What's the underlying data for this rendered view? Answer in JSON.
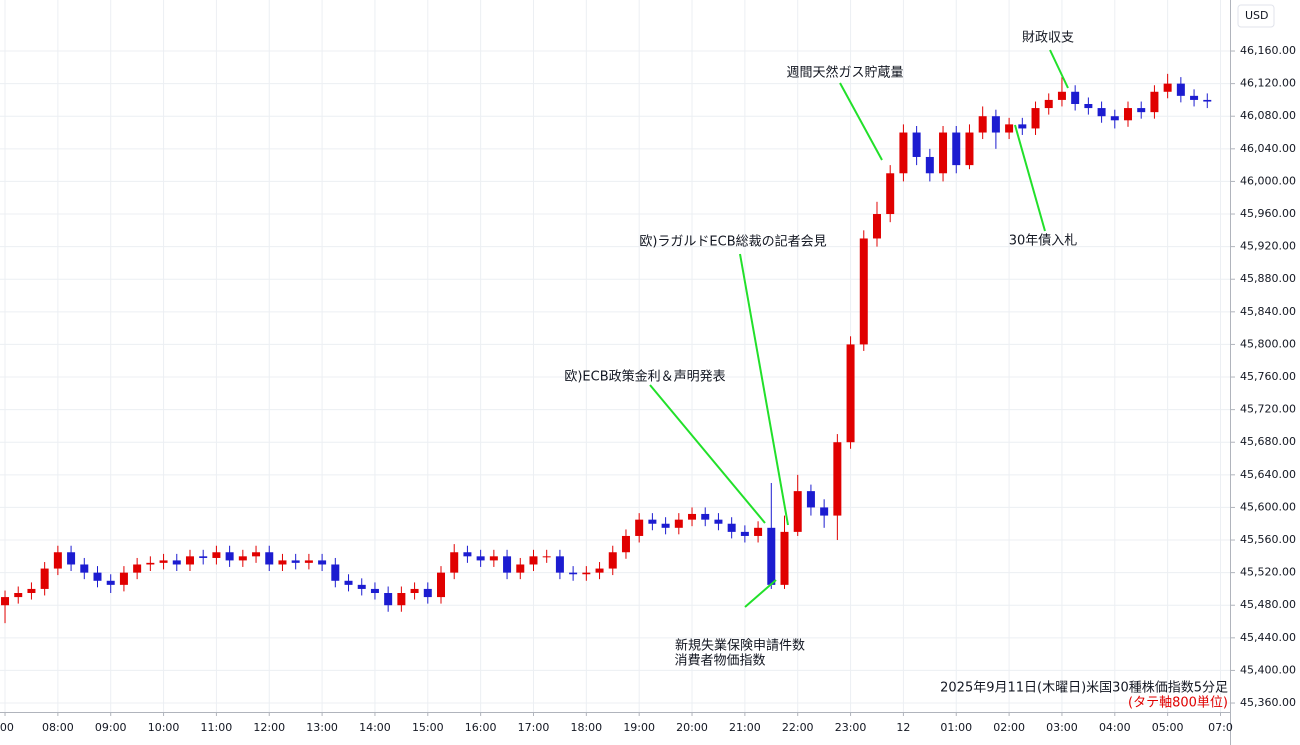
{
  "chart_data": {
    "type": "candlestick",
    "currency": "USD",
    "caption": "2025年9月11日(木曜日)米国30種株価指数5分足",
    "note": "(タテ軸800単位)",
    "annotations": [
      "財政収支",
      "週間天然ガス貯蔵量",
      "30年債入札",
      "欧)ラガルドECB総裁の記者会見",
      "欧)ECB政策金利＆声明発表",
      "新規失業保険申請件数",
      "消費者物価指数"
    ],
    "up_color": "#e00000",
    "down_color": "#1c1cd0",
    "grid": true,
    "xlim": [
      6.905,
      30.18
    ],
    "ylim": [
      45349,
      46222.6
    ],
    "xticks": [
      {
        "value": 7,
        "label": ":00"
      },
      {
        "value": 8,
        "label": "08:00"
      },
      {
        "value": 9,
        "label": "09:00"
      },
      {
        "value": 10,
        "label": "10:00"
      },
      {
        "value": 11,
        "label": "11:00"
      },
      {
        "value": 12,
        "label": "12:00"
      },
      {
        "value": 13,
        "label": "13:00"
      },
      {
        "value": 14,
        "label": "14:00"
      },
      {
        "value": 15,
        "label": "15:00"
      },
      {
        "value": 16,
        "label": "16:00"
      },
      {
        "value": 17,
        "label": "17:00"
      },
      {
        "value": 18,
        "label": "18:00"
      },
      {
        "value": 19,
        "label": "19:00"
      },
      {
        "value": 20,
        "label": "20:00"
      },
      {
        "value": 21,
        "label": "21:00"
      },
      {
        "value": 22,
        "label": "22:00"
      },
      {
        "value": 23,
        "label": "23:00"
      },
      {
        "value": 24,
        "label": "12"
      },
      {
        "value": 25,
        "label": "01:00"
      },
      {
        "value": 26,
        "label": "02:00"
      },
      {
        "value": 27,
        "label": "03:00"
      },
      {
        "value": 28,
        "label": "04:00"
      },
      {
        "value": 29,
        "label": "05:00"
      },
      {
        "value": 30,
        "label": "07:0"
      }
    ],
    "yticks": [
      {
        "value": 45360,
        "label": "45,360.00"
      },
      {
        "value": 45400,
        "label": "45,400.00"
      },
      {
        "value": 45440,
        "label": "45,440.00"
      },
      {
        "value": 45480,
        "label": "45,480.00"
      },
      {
        "value": 45520,
        "label": "45,520.00"
      },
      {
        "value": 45560,
        "label": "45,560.00"
      },
      {
        "value": 45600,
        "label": "45,600.00"
      },
      {
        "value": 45640,
        "label": "45,640.00"
      },
      {
        "value": 45680,
        "label": "45,680.00"
      },
      {
        "value": 45720,
        "label": "45,720.00"
      },
      {
        "value": 45760,
        "label": "45,760.00"
      },
      {
        "value": 45800,
        "label": "45,800.00"
      },
      {
        "value": 45840,
        "label": "45,840.00"
      },
      {
        "value": 45880,
        "label": "45,880.00"
      },
      {
        "value": 45920,
        "label": "45,920.00"
      },
      {
        "value": 45960,
        "label": "45,960.00"
      },
      {
        "value": 46000,
        "label": "46,000.00"
      },
      {
        "value": 46040,
        "label": "46,040.00"
      },
      {
        "value": 46080,
        "label": "46,080.00"
      },
      {
        "value": 46120,
        "label": "46,120.00"
      },
      {
        "value": 46160,
        "label": "46,160.00"
      }
    ],
    "x": [
      7,
      7.25,
      7.5,
      7.75,
      8,
      8.25,
      8.5,
      8.75,
      9,
      9.25,
      9.5,
      9.75,
      10,
      10.25,
      10.5,
      10.75,
      11,
      11.25,
      11.5,
      11.75,
      12,
      12.25,
      12.5,
      12.75,
      13,
      13.25,
      13.5,
      13.75,
      14,
      14.25,
      14.5,
      14.75,
      15,
      15.25,
      15.5,
      15.75,
      16,
      16.25,
      16.5,
      16.75,
      17,
      17.25,
      17.5,
      17.75,
      18,
      18.25,
      18.5,
      18.75,
      19,
      19.25,
      19.5,
      19.75,
      20,
      20.25,
      20.5,
      20.75,
      21,
      21.25,
      21.5,
      21.75,
      22,
      22.25,
      22.5,
      22.75,
      23,
      23.25,
      23.5,
      23.75,
      24,
      24.25,
      24.5,
      24.75,
      25,
      25.25,
      25.5,
      25.75,
      26,
      26.25,
      26.5,
      26.75,
      27,
      27.25,
      27.5,
      27.75,
      28,
      28.25,
      28.5,
      28.75,
      29,
      29.25,
      29.5,
      29.75
    ],
    "open": [
      45480,
      45490,
      45495,
      45500,
      45525,
      45545,
      45530,
      45520,
      45510,
      45505,
      45520,
      45530,
      45532,
      45535,
      45530,
      45540,
      45538,
      45545,
      45535,
      45540,
      45545,
      45530,
      45535,
      45532,
      45535,
      45530,
      45510,
      45505,
      45500,
      45495,
      45480,
      45495,
      45500,
      45490,
      45520,
      45545,
      45540,
      45535,
      45540,
      45520,
      45530,
      45540,
      45540,
      45520,
      45518,
      45520,
      45525,
      45545,
      45565,
      45585,
      45580,
      45575,
      45585,
      45592,
      45585,
      45580,
      45570,
      45565,
      45575,
      45505,
      45570,
      45620,
      45600,
      45590,
      45680,
      45800,
      45930,
      45960,
      46010,
      46060,
      46030,
      46010,
      46060,
      46020,
      46060,
      46080,
      46060,
      46070,
      46065,
      46090,
      46100,
      46110,
      46095,
      46090,
      46080,
      46075,
      46090,
      46085,
      46110,
      46120,
      46105,
      46100
    ],
    "high": [
      45498,
      45503,
      45508,
      45533,
      45553,
      45553,
      45538,
      45528,
      45518,
      45528,
      45538,
      45540,
      45543,
      45543,
      45548,
      45548,
      45553,
      45553,
      45548,
      45553,
      45553,
      45543,
      45543,
      45543,
      45543,
      45538,
      45518,
      45513,
      45508,
      45503,
      45503,
      45508,
      45508,
      45528,
      45555,
      45553,
      45548,
      45548,
      45548,
      45538,
      45548,
      45548,
      45548,
      45528,
      45528,
      45533,
      45553,
      45573,
      45593,
      45593,
      45588,
      45593,
      45600,
      45600,
      45593,
      45588,
      45578,
      45583,
      45630,
      45590,
      45640,
      45628,
      45610,
      45690,
      45810,
      45940,
      45975,
      46020,
      46070,
      46068,
      46040,
      46068,
      46068,
      46070,
      46092,
      46088,
      46078,
      46078,
      46098,
      46108,
      46128,
      46118,
      46103,
      46098,
      46088,
      46098,
      46098,
      46118,
      46132,
      46128,
      46113,
      46108
    ],
    "low": [
      45458,
      45482,
      45487,
      45492,
      45517,
      45522,
      45512,
      45502,
      45495,
      45497,
      45512,
      45522,
      45524,
      45522,
      45522,
      45530,
      45530,
      45527,
      45527,
      45532,
      45522,
      45522,
      45524,
      45524,
      45522,
      45502,
      45497,
      45492,
      45487,
      45472,
      45472,
      45487,
      45482,
      45482,
      45512,
      45532,
      45527,
      45527,
      45512,
      45512,
      45522,
      45532,
      45512,
      45510,
      45510,
      45512,
      45517,
      45537,
      45557,
      45572,
      45567,
      45567,
      45577,
      45577,
      45572,
      45562,
      45557,
      45557,
      45500,
      45500,
      45565,
      45590,
      45575,
      45560,
      45672,
      45792,
      45920,
      45950,
      46000,
      46020,
      46000,
      46000,
      46010,
      46015,
      46052,
      46040,
      46052,
      46057,
      46057,
      46082,
      46092,
      46087,
      46082,
      46072,
      46065,
      46067,
      46077,
      46077,
      46102,
      46097,
      46092,
      46090
    ],
    "close": [
      45490,
      45495,
      45500,
      45525,
      45545,
      45530,
      45520,
      45510,
      45505,
      45520,
      45530,
      45532,
      45535,
      45530,
      45540,
      45538,
      45545,
      45535,
      45540,
      45545,
      45530,
      45535,
      45532,
      45535,
      45530,
      45510,
      45505,
      45500,
      45495,
      45480,
      45495,
      45500,
      45490,
      45520,
      45545,
      45540,
      45535,
      45540,
      45520,
      45530,
      45540,
      45540,
      45520,
      45518,
      45520,
      45525,
      45545,
      45565,
      45585,
      45580,
      45575,
      45585,
      45592,
      45585,
      45580,
      45570,
      45565,
      45575,
      45505,
      45570,
      45620,
      45600,
      45590,
      45680,
      45800,
      45930,
      45960,
      46010,
      46060,
      46030,
      46010,
      46060,
      46020,
      46060,
      46080,
      46060,
      46070,
      46065,
      46090,
      46100,
      46110,
      46095,
      46090,
      46080,
      46075,
      46090,
      46085,
      46110,
      46120,
      46105,
      46100,
      46098
    ]
  }
}
